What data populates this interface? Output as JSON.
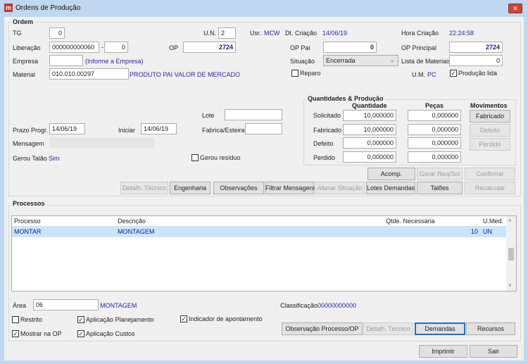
{
  "window": {
    "title": "Ordens de Produção",
    "close": "✕"
  },
  "ordem": {
    "group_label": "Ordem",
    "tg_label": "TG",
    "tg": "0",
    "un_label": "U.N.",
    "un": "2",
    "usr_label": "Usr.",
    "usr": "MCW",
    "dt_criacao_label": "Dt. Criação",
    "dt_criacao": "14/06/19",
    "hora_criacao_label": "Hora Criação",
    "hora_criacao": "22:24:58",
    "liberacao_label": "Liberação",
    "liberacao": "000000000060",
    "liberacao_sep": "-",
    "liberacao_seq": "0",
    "op_label": "OP",
    "op": "2724",
    "op_pai_label": "OP Pai",
    "op_pai": "0",
    "op_principal_label": "OP Principal",
    "op_principal": "2724",
    "empresa_label": "Empresa",
    "empresa": "",
    "empresa_hint": "(Informe a Empresa)",
    "situacao_label": "Situação",
    "situacao": "Encerrada",
    "lista_label": "Lista de Materiais",
    "lista": "0",
    "material_label": "Material",
    "material": "010.010.00297",
    "material_desc": "PRODUTO PAI VALOR DE MERCADO",
    "reparo_label": "Reparo",
    "reparo": false,
    "um_label": "U.M.",
    "um": "PC",
    "producao_lida_label": "Produção lida",
    "producao_lida": true,
    "lote_label": "Lote",
    "lote": "",
    "prazo_label": "Prazo Progr.",
    "prazo": "14/06/19",
    "iniciar_label": "Iniciar",
    "iniciar": "14/06/19",
    "fabrica_label": "Fabrica/Esteira",
    "fabrica": "",
    "mensagem_label": "Mensagem",
    "mensagem": "",
    "gerou_talao_label": "Gerou Talão",
    "gerou_talao": "Sim",
    "gerou_residuo_label": "Gerou resíduo",
    "gerou_residuo": false
  },
  "quantidades": {
    "group_label": "Quantidades & Produção",
    "col_qtd": "Quantidade",
    "col_pecas": "Peças",
    "col_mov": "Movimentos",
    "rows": [
      {
        "label": "Solicitado",
        "qtd": "10,000000",
        "pecas": "0,000000",
        "mov": "Fabricado"
      },
      {
        "label": "Fabricado",
        "qtd": "10,000000",
        "pecas": "0,000000",
        "mov": "Defeito"
      },
      {
        "label": "Defeito",
        "qtd": "0,000000",
        "pecas": "0,000000",
        "mov": "Perdido"
      },
      {
        "label": "Perdido",
        "qtd": "0,000000",
        "pecas": "0,000000"
      }
    ]
  },
  "buttons": {
    "acomp": "Acomp.",
    "gerar": "Gerar Req/Sol",
    "confirmar": "Confirmar",
    "detalh": "Detalh. Técnico",
    "engenharia": "Engenharia",
    "observacoes": "Observações",
    "filtrar": "Filtrar Mensagens",
    "alterar": "Alterar Situação",
    "lotes": "Lotes Demandas",
    "taloes": "Talões",
    "recalcular": "Recalcular"
  },
  "processos": {
    "group_label": "Processos",
    "columns": [
      "Processo",
      "Descrição",
      "Qtde. Necessária",
      "U.Med."
    ],
    "rows": [
      {
        "processo": "MONTAR",
        "descricao": "MONTAGEM",
        "qtde": "10",
        "umed": "UN"
      }
    ],
    "area_label": "Área",
    "area": "06",
    "area_desc": "MONTAGEM",
    "classificacao_label": "Classificação",
    "classificacao": "00000000000",
    "restrito": "Restrito",
    "aplic_plan": "Aplicação Planejamento",
    "indicador": "Indicador de apontamento",
    "mostrar": "Mostrar na OP",
    "aplic_custos": "Aplicação Custos",
    "btn_obs": "Observação Processo/OP",
    "btn_detalh": "Detalh. Técnico",
    "btn_demandas": "Demandas",
    "btn_recursos": "Recursos"
  },
  "footer": {
    "imprimir": "Imprimir",
    "sair": "Sair"
  }
}
